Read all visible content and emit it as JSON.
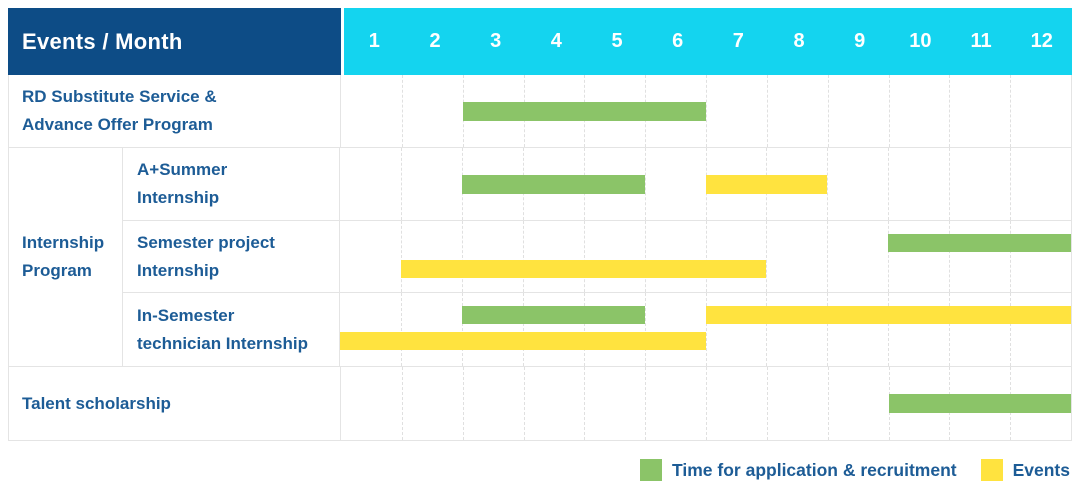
{
  "header": {
    "title": "Events / Month",
    "months": [
      "1",
      "2",
      "3",
      "4",
      "5",
      "6",
      "7",
      "8",
      "9",
      "10",
      "11",
      "12"
    ]
  },
  "colors": {
    "header_bg": "#0d4c86",
    "months_bg": "#14d4ef",
    "application_bar": "#8bc468",
    "events_bar": "#ffe33f",
    "label_text": "#1d5c96"
  },
  "legend": {
    "items": [
      {
        "key": "application",
        "label": "Time for application & recruitment",
        "color": "#8bc468"
      },
      {
        "key": "events",
        "label": "Events",
        "color": "#ffe33f"
      }
    ]
  },
  "chart_data": {
    "type": "gantt",
    "title": "Events / Month",
    "x_axis": {
      "label": "Month",
      "ticks": [
        1,
        2,
        3,
        4,
        5,
        6,
        7,
        8,
        9,
        10,
        11,
        12
      ],
      "range": [
        1,
        12
      ]
    },
    "grid": "monthly dashed vertical lines",
    "legend_position": "bottom-right",
    "series_meaning": {
      "application": "Time for application & recruitment (green)",
      "events": "Events (yellow)"
    },
    "rows": [
      {
        "id": "rd-substitute",
        "label": "RD Substitute Service & Advance Offer Program",
        "label_lines": [
          "RD Substitute Service &",
          "Advance Offer Program"
        ],
        "bars": [
          {
            "series": "application",
            "start_month": 3,
            "end_month": 6,
            "line": "center"
          }
        ]
      },
      {
        "id": "a-plus-summer-internship",
        "group": "Internship Program",
        "label": "A+Summer Internship",
        "label_lines": [
          "A+Summer",
          "Internship"
        ],
        "bars": [
          {
            "series": "application",
            "start_month": 3,
            "end_month": 5,
            "line": "center"
          },
          {
            "series": "events",
            "start_month": 7,
            "end_month": 8,
            "line": "center"
          }
        ]
      },
      {
        "id": "semester-project-internship",
        "group": "Internship Program",
        "label": "Semester project Internship",
        "label_lines": [
          "Semester project",
          "Internship"
        ],
        "bars": [
          {
            "series": "application",
            "start_month": 10,
            "end_month": 12,
            "line": "upper"
          },
          {
            "series": "events",
            "start_month": 2,
            "end_month": 7,
            "line": "lower"
          }
        ]
      },
      {
        "id": "in-semester-technician-internship",
        "group": "Internship Program",
        "label": "In-Semester technician Internship",
        "label_lines": [
          "In-Semester",
          "technician Internship"
        ],
        "bars": [
          {
            "series": "application",
            "start_month": 3,
            "end_month": 5,
            "line": "upper"
          },
          {
            "series": "events",
            "start_month": 7,
            "end_month": 12,
            "line": "upper"
          },
          {
            "series": "events",
            "start_month": 1,
            "end_month": 6,
            "line": "lower"
          }
        ]
      },
      {
        "id": "talent-scholarship",
        "label": "Talent scholarship",
        "label_lines": [
          "Talent scholarship"
        ],
        "bars": [
          {
            "series": "application",
            "start_month": 10,
            "end_month": 12,
            "line": "center"
          }
        ]
      }
    ],
    "groups": [
      {
        "label": "Internship Program",
        "label_lines": [
          "Internship",
          "Program"
        ],
        "row_ids": [
          "a-plus-summer-internship",
          "semester-project-internship",
          "in-semester-technician-internship"
        ]
      }
    ]
  }
}
